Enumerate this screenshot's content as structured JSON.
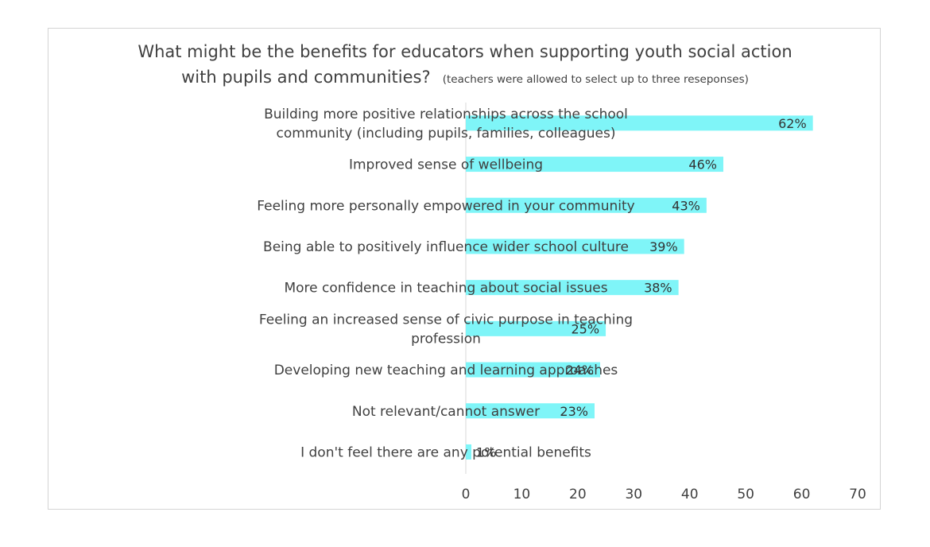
{
  "chart_data": {
    "type": "bar",
    "orientation": "horizontal",
    "title_line1": "What might be the benefits for educators when supporting youth social action",
    "title_line2": "with pupils and communities?",
    "subtitle": "(teachers were allowed to select up to three reseponses)",
    "categories": [
      [
        "Building more positive relationships across the school",
        "community (including pupils, families, colleagues)"
      ],
      [
        "Improved sense of wellbeing"
      ],
      [
        "Feeling more personally empowered in your community"
      ],
      [
        "Being able to positively influence wider school culture"
      ],
      [
        "More confidence in teaching about social issues"
      ],
      [
        "Feeling an increased sense of civic purpose in teaching",
        "profession"
      ],
      [
        "Developing new teaching and learning approaches"
      ],
      [
        "Not relevant/cannot answer"
      ],
      [
        "I don't feel there are any potential benefits"
      ]
    ],
    "values": [
      62,
      46,
      43,
      39,
      38,
      25,
      24,
      23,
      1
    ],
    "data_labels": [
      "62%",
      "46%",
      "43%",
      "39%",
      "38%",
      "25%",
      "24%",
      "23%",
      "1%"
    ],
    "xlim": [
      0,
      70
    ],
    "xticks": [
      "0",
      "10",
      "20",
      "30",
      "40",
      "50",
      "60",
      "70"
    ],
    "xlabel": "",
    "ylabel": "",
    "grid": false,
    "legend": "none",
    "bar_color": "#7ff5f8"
  }
}
